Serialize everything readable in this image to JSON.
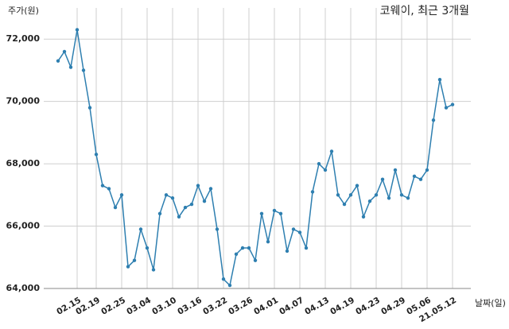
{
  "chart_data": {
    "type": "line",
    "title": "코웨이, 최근 3개월",
    "y_label": "주가(원)",
    "x_label": "날짜(일)",
    "categories": [
      null,
      null,
      null,
      "02.15",
      null,
      null,
      "02.19",
      null,
      null,
      null,
      "02.25",
      null,
      null,
      null,
      "03.04",
      null,
      null,
      null,
      "03.10",
      null,
      null,
      null,
      "03.16",
      null,
      null,
      null,
      "03.22",
      null,
      null,
      null,
      "03.26",
      null,
      null,
      null,
      "04.01",
      null,
      null,
      null,
      "04.07",
      null,
      null,
      null,
      "04.13",
      null,
      null,
      null,
      "04.19",
      null,
      null,
      null,
      "04.23",
      null,
      null,
      null,
      "04.29",
      null,
      null,
      null,
      "05.06",
      null,
      null,
      null,
      "21.05.12"
    ],
    "series": [
      {
        "name": "주가",
        "color": "#2e7fb0",
        "values": [
          71300,
          71600,
          71100,
          72300,
          71000,
          69800,
          68300,
          67300,
          67200,
          66600,
          67000,
          64700,
          64900,
          65900,
          65300,
          64600,
          66400,
          67000,
          66900,
          66300,
          66600,
          66700,
          67300,
          66800,
          67200,
          65900,
          64300,
          64100,
          65100,
          65300,
          65300,
          64900,
          66400,
          65500,
          66500,
          66400,
          65200,
          65900,
          65800,
          65300,
          67100,
          68000,
          67800,
          68400,
          67000,
          66700,
          67000,
          67300,
          66300,
          66800,
          67000,
          67500,
          66900,
          67800,
          67000,
          66900,
          67600,
          67500,
          67800,
          69400,
          70700,
          69800,
          69900
        ]
      }
    ],
    "ylim": [
      64000,
      73000
    ],
    "yticks": [
      {
        "value": 64000,
        "label": "64,000"
      },
      {
        "value": 66000,
        "label": "66,000"
      },
      {
        "value": 68000,
        "label": "68,000"
      },
      {
        "value": 70000,
        "label": "70,000"
      },
      {
        "value": 72000,
        "label": "72,000"
      }
    ],
    "grid": true
  }
}
